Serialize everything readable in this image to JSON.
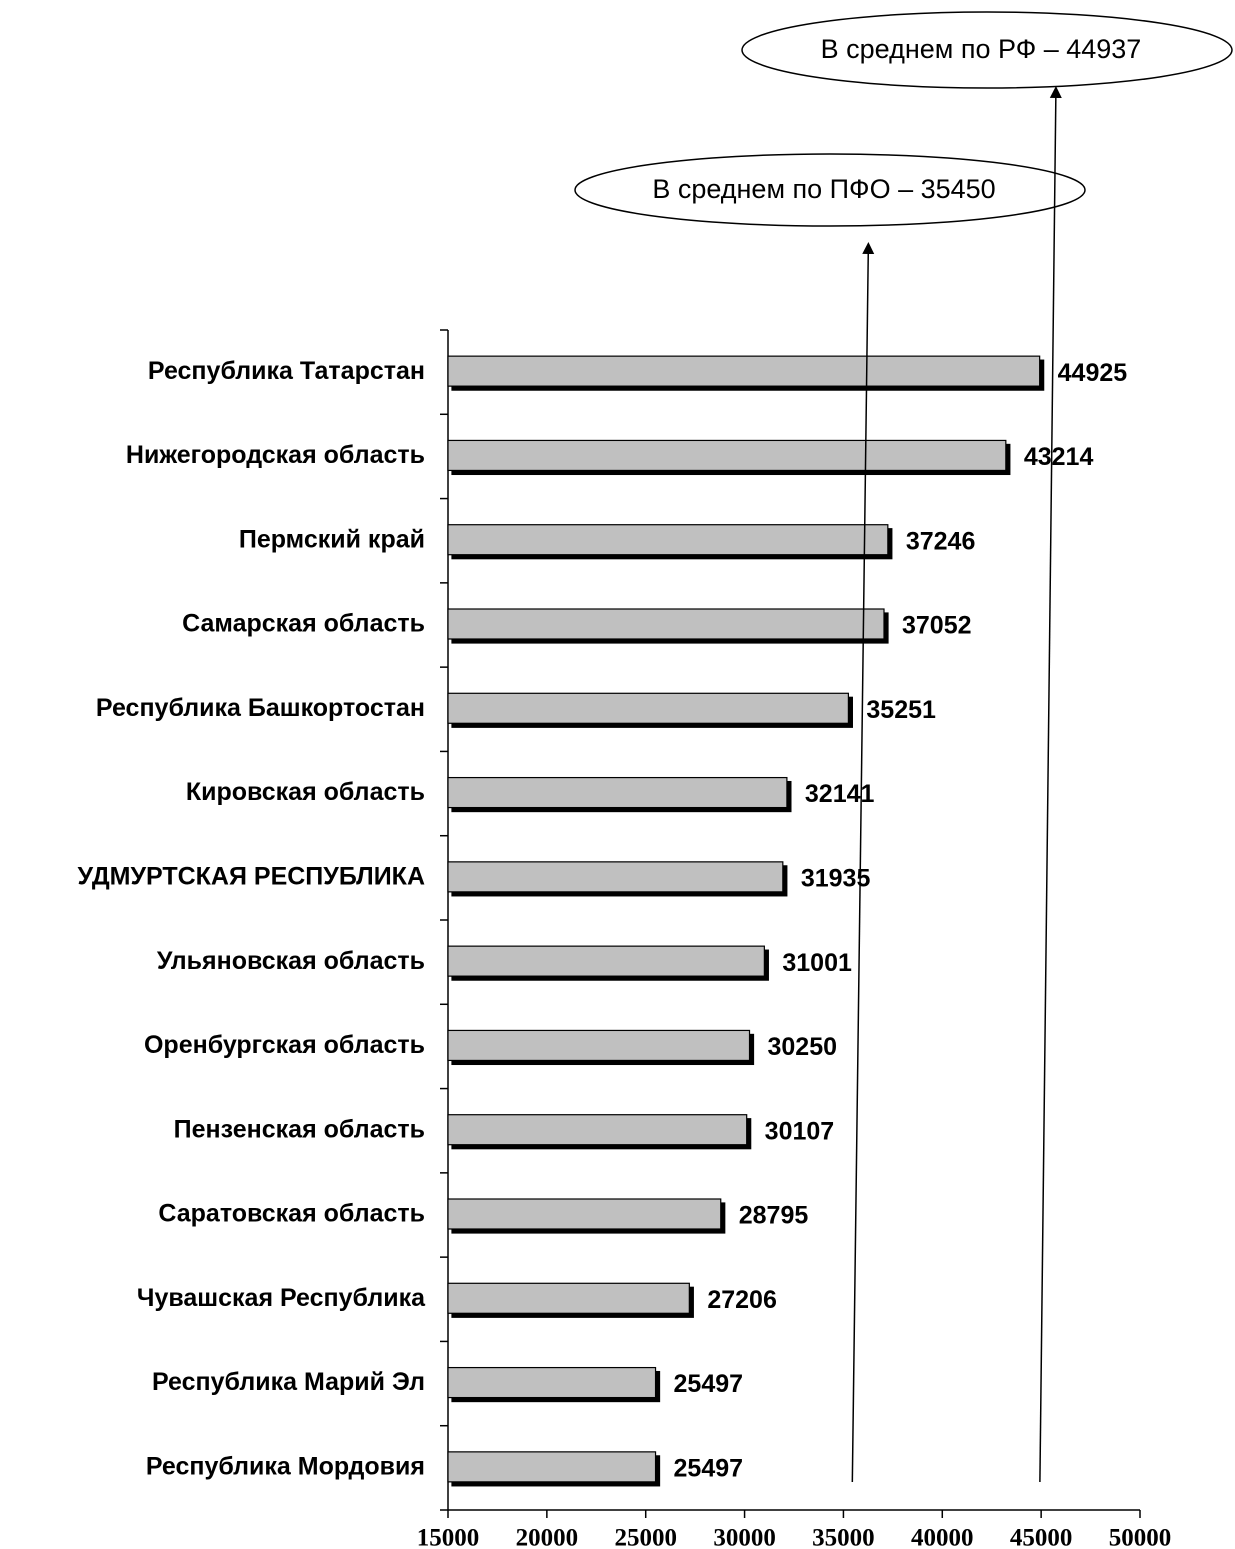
{
  "chart_data": {
    "type": "bar",
    "orientation": "horizontal",
    "categories": [
      "Республика Татарстан",
      "Нижегородская область",
      "Пермский край",
      "Самарская область",
      "Республика Башкортостан",
      "Кировская область",
      "УДМУРТСКАЯ РЕСПУБЛИКА",
      "Ульяновская область",
      "Оренбургская область",
      "Пензенская область",
      "Саратовская область",
      "Чувашская Республика",
      "Республика Марий Эл",
      "Республика Мордовия"
    ],
    "values": [
      44925,
      43214,
      37246,
      37052,
      35251,
      32141,
      31935,
      31001,
      30250,
      30107,
      28795,
      27206,
      25497,
      25497
    ],
    "color": "#c0c0c0",
    "xlim": [
      15000,
      50000
    ],
    "xticks": [
      15000,
      20000,
      25000,
      30000,
      35000,
      40000,
      45000,
      50000
    ],
    "annotations": [
      {
        "text": "В среднем по ПФО – 35450",
        "value": 35450
      },
      {
        "text": "В среднем по РФ – 44937",
        "value": 44937
      }
    ]
  }
}
